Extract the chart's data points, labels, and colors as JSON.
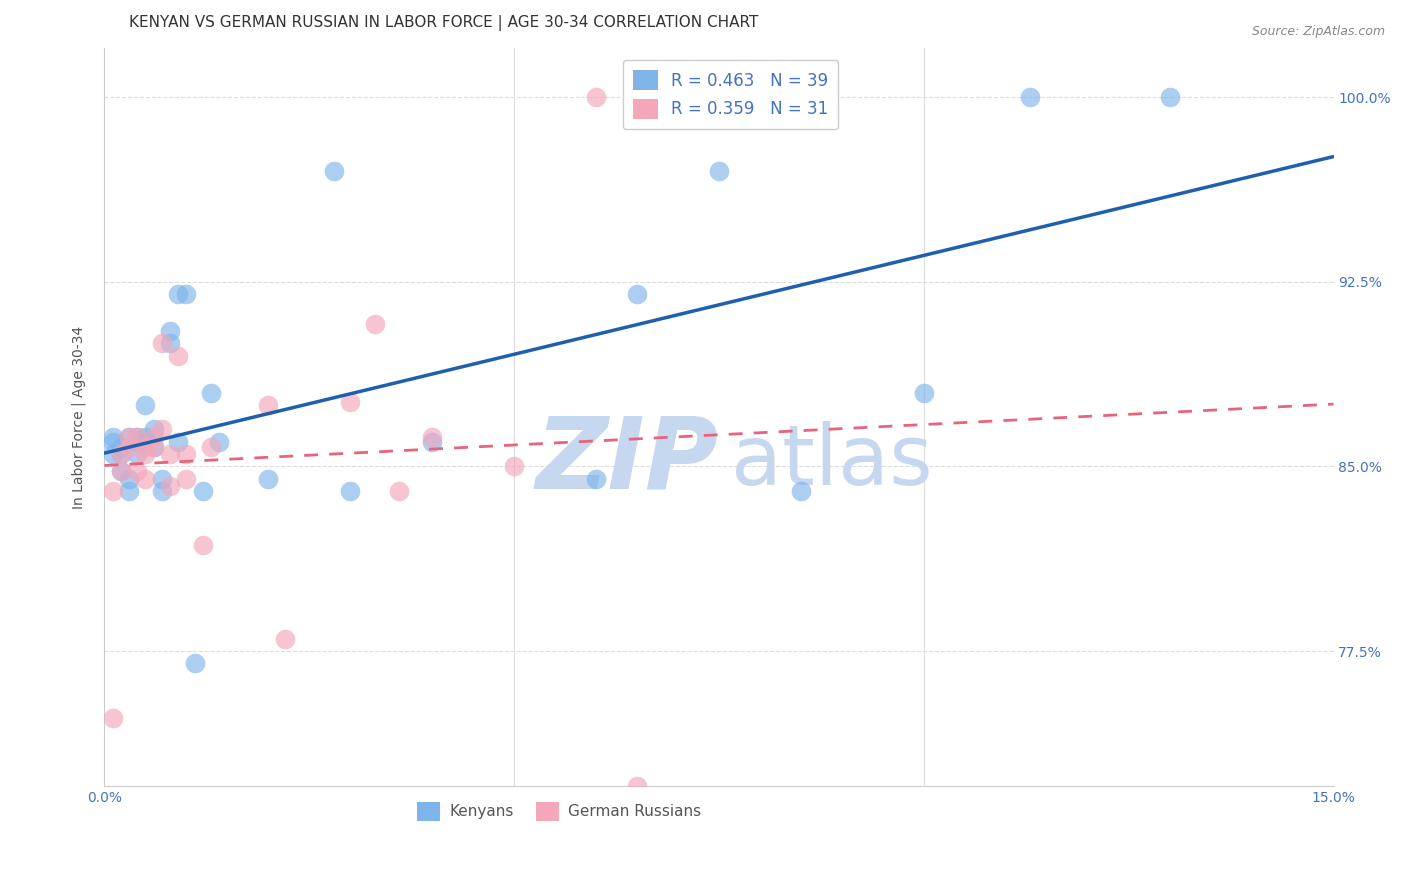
{
  "title": "KENYAN VS GERMAN RUSSIAN IN LABOR FORCE | AGE 30-34 CORRELATION CHART",
  "source": "Source: ZipAtlas.com",
  "ylabel": "In Labor Force | Age 30-34",
  "xlim": [
    0.0,
    0.15
  ],
  "ylim": [
    0.72,
    1.02
  ],
  "xticks": [
    0.0,
    0.05,
    0.1,
    0.15
  ],
  "xticklabels": [
    "0.0%",
    "",
    "",
    "15.0%"
  ],
  "yticks": [
    0.775,
    0.85,
    0.925,
    1.0
  ],
  "yticklabels": [
    "77.5%",
    "85.0%",
    "92.5%",
    "100.0%"
  ],
  "kenyan_color": "#7EB4EA",
  "german_color": "#F4A7B9",
  "kenyan_R": 0.463,
  "kenyan_N": 39,
  "german_R": 0.359,
  "german_N": 31,
  "kenyan_x": [
    0.001,
    0.001,
    0.001,
    0.002,
    0.002,
    0.002,
    0.003,
    0.003,
    0.003,
    0.004,
    0.004,
    0.004,
    0.005,
    0.005,
    0.005,
    0.006,
    0.006,
    0.007,
    0.007,
    0.008,
    0.008,
    0.009,
    0.009,
    0.01,
    0.011,
    0.012,
    0.013,
    0.014,
    0.02,
    0.028,
    0.03,
    0.04,
    0.06,
    0.065,
    0.075,
    0.085,
    0.1,
    0.113,
    0.13
  ],
  "kenyan_y": [
    0.855,
    0.86,
    0.862,
    0.848,
    0.855,
    0.858,
    0.84,
    0.845,
    0.862,
    0.855,
    0.86,
    0.862,
    0.86,
    0.862,
    0.875,
    0.858,
    0.865,
    0.84,
    0.845,
    0.9,
    0.905,
    0.92,
    0.86,
    0.92,
    0.77,
    0.84,
    0.88,
    0.86,
    0.845,
    0.97,
    0.84,
    0.86,
    0.845,
    0.92,
    0.97,
    0.84,
    0.88,
    1.0,
    1.0
  ],
  "german_x": [
    0.001,
    0.001,
    0.002,
    0.002,
    0.003,
    0.003,
    0.004,
    0.004,
    0.005,
    0.005,
    0.005,
    0.006,
    0.006,
    0.007,
    0.007,
    0.008,
    0.008,
    0.009,
    0.01,
    0.01,
    0.012,
    0.013,
    0.02,
    0.022,
    0.03,
    0.033,
    0.036,
    0.04,
    0.05,
    0.06,
    0.065
  ],
  "german_y": [
    0.748,
    0.84,
    0.848,
    0.855,
    0.858,
    0.862,
    0.848,
    0.862,
    0.845,
    0.855,
    0.858,
    0.858,
    0.862,
    0.9,
    0.865,
    0.842,
    0.855,
    0.895,
    0.845,
    0.855,
    0.818,
    0.858,
    0.875,
    0.78,
    0.876,
    0.908,
    0.84,
    0.862,
    0.85,
    1.0,
    0.72
  ],
  "watermark_zip": "ZIP",
  "watermark_atlas": "atlas",
  "watermark_color_zip": "#C5D8EF",
  "watermark_color_atlas": "#C5D8EF",
  "trend_line_color_kenyan": "#1F5FAD",
  "trend_line_color_german": "#E8637C",
  "grid_color": "#DDDDDD",
  "axis_color": "#CCCCCC",
  "tick_color": "#4472C4",
  "title_color": "#333333",
  "title_fontsize": 11,
  "label_fontsize": 10
}
